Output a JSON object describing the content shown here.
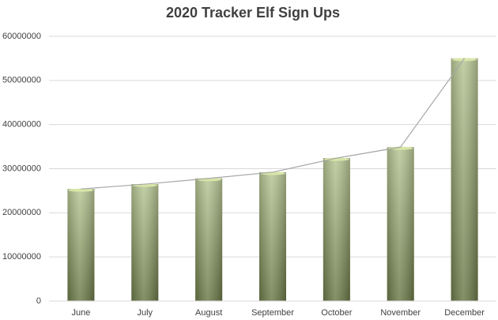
{
  "chart_data": {
    "type": "bar",
    "title": "2020 Tracker Elf Sign Ups",
    "categories": [
      "June",
      "July",
      "August",
      "September",
      "October",
      "November",
      "December"
    ],
    "values": [
      25400000,
      26500000,
      27800000,
      29200000,
      32400000,
      34900000,
      55000000
    ],
    "color": "#9bb06a",
    "line": true,
    "line_color": "#a6a6a6",
    "ylim": [
      0,
      60000000
    ],
    "yticks": [
      0,
      10000000,
      20000000,
      30000000,
      40000000,
      50000000,
      60000000
    ],
    "grid": true
  }
}
